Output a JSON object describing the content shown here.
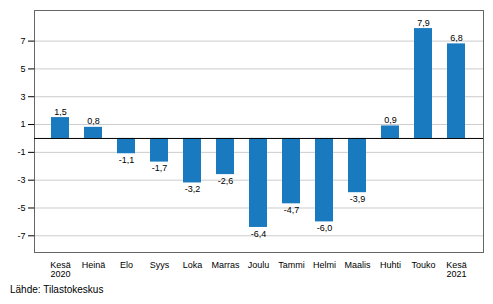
{
  "chart_data": {
    "type": "bar",
    "categories": [
      "Kesä\n2020",
      "Heinä",
      "Elo",
      "Syys",
      "Loka",
      "Marras",
      "Joulu",
      "Tammi",
      "Helmi",
      "Maalis",
      "Huhti",
      "Touko",
      "Kesä\n2021"
    ],
    "values": [
      1.5,
      0.8,
      -1.1,
      -1.7,
      -3.2,
      -2.6,
      -6.4,
      -4.7,
      -6.0,
      -3.9,
      0.9,
      7.9,
      6.8
    ],
    "value_labels": [
      "1,5",
      "0,8",
      "-1,1",
      "-1,7",
      "-3,2",
      "-2,6",
      "-6,4",
      "-4,7",
      "-6,0",
      "-3,9",
      "0,9",
      "7,9",
      "6,8"
    ],
    "data_labels": true,
    "color": "#1a7abf",
    "ylim": [
      -8.2,
      9.2
    ],
    "yticks": [
      -7,
      -5,
      -3,
      -1,
      1,
      3,
      5,
      7
    ],
    "grid": true,
    "caption": "Lähde: Tilastokeskus"
  }
}
